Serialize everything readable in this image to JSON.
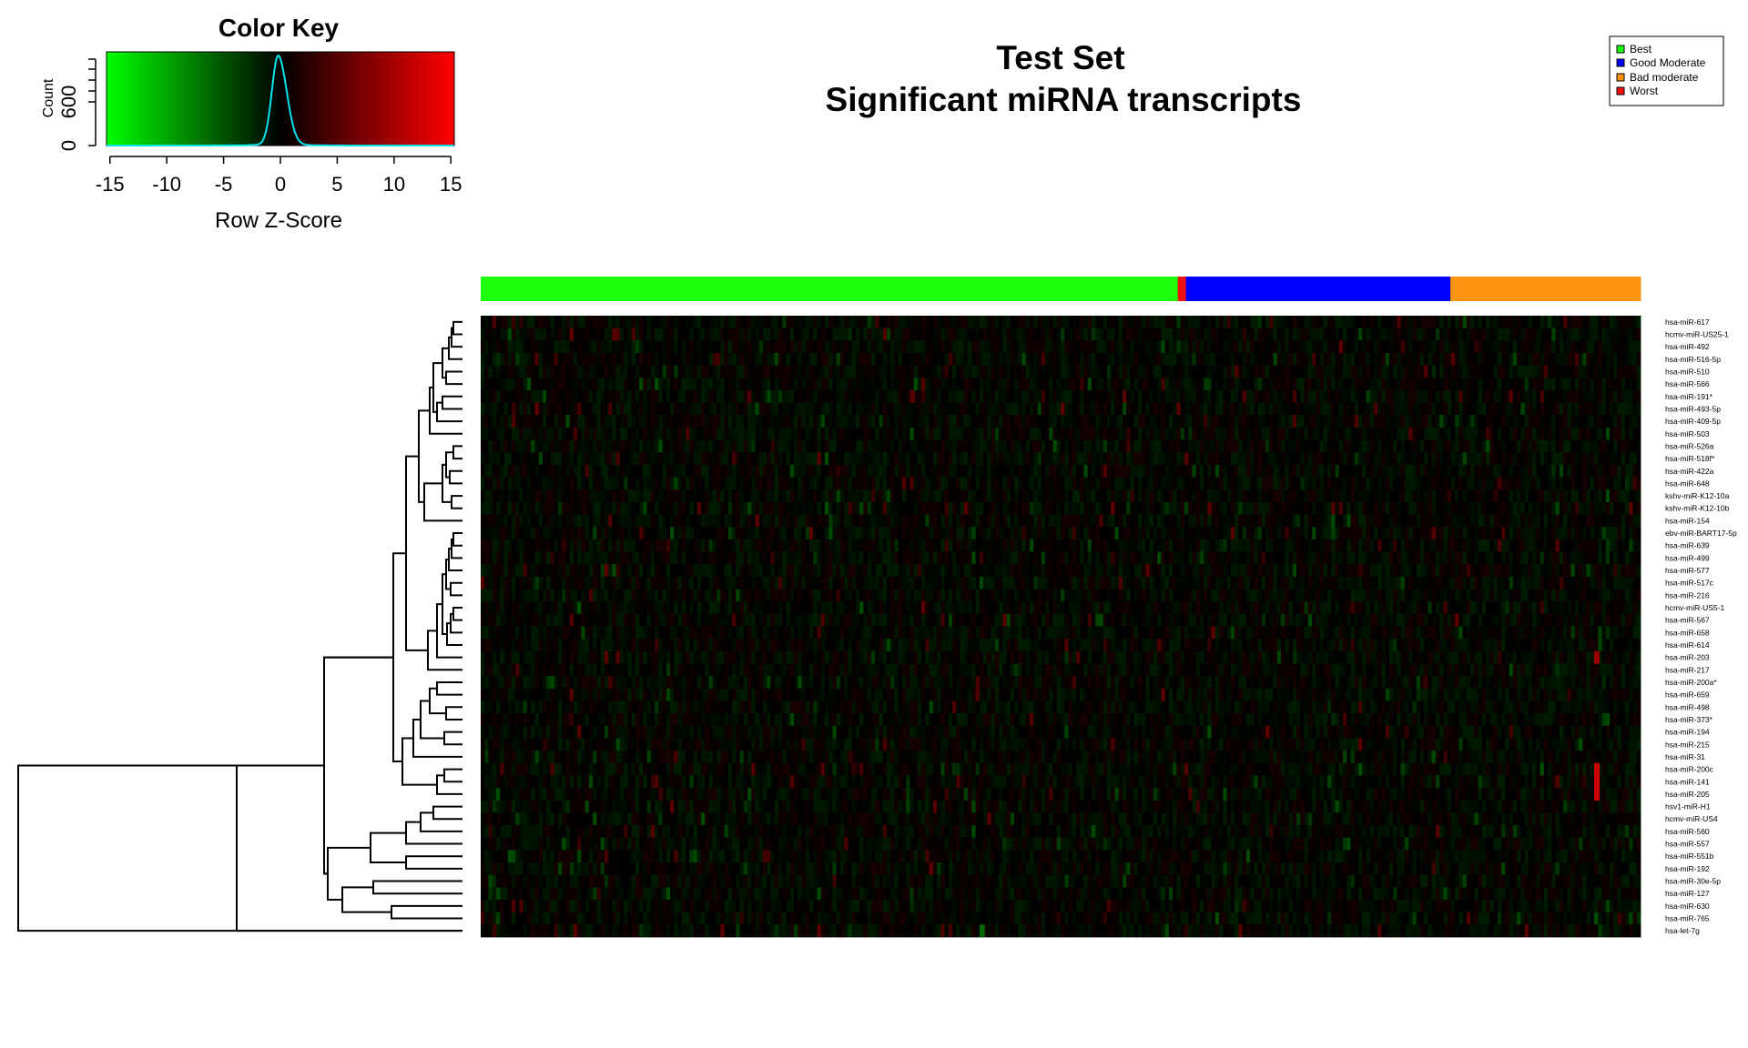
{
  "chart_data": {
    "type": "heatmap",
    "title": "Test Set",
    "subtitle": "Significant miRNA transcripts",
    "rows": [
      "hsa-miR-617",
      "hcmv-miR-US25-1",
      "hsa-miR-492",
      "hsa-miR-516-5p",
      "hsa-miR-510",
      "hsa-miR-566",
      "hsa-miR-191*",
      "hsa-miR-493-5p",
      "hsa-miR-409-5p",
      "hsa-miR-503",
      "hsa-miR-526a",
      "hsa-miR-518f*",
      "hsa-miR-422a",
      "hsa-miR-648",
      "kshv-miR-K12-10a",
      "kshv-miR-K12-10b",
      "hsa-miR-154",
      "ebv-miR-BART17-5p",
      "hsa-miR-639",
      "hsa-miR-499",
      "hsa-miR-577",
      "hsa-miR-517c",
      "hsa-miR-216",
      "hcmv-miR-US5-1",
      "hsa-miR-567",
      "hsa-miR-658",
      "hsa-miR-614",
      "hsa-miR-203",
      "hsa-miR-217",
      "hsa-miR-200a*",
      "hsa-miR-659",
      "hsa-miR-498",
      "hsa-miR-373*",
      "hsa-miR-194",
      "hsa-miR-215",
      "hsa-miR-31",
      "hsa-miR-200c",
      "hsa-miR-141",
      "hsa-miR-205",
      "hsv1-miR-H1",
      "hcmv-miR-US4",
      "hsa-miR-560",
      "hsa-miR-557",
      "hsa-miR-551b",
      "hsa-miR-192",
      "hsa-miR-30e-5p",
      "hsa-miR-127",
      "hsa-miR-630",
      "hsa-miR-765",
      "hsa-let-7g"
    ],
    "column_groups": [
      {
        "name": "Best",
        "color": "#1dff0a",
        "fraction": 0.601
      },
      {
        "name": "Worst",
        "color": "#ee1111",
        "fraction": 0.007
      },
      {
        "name": "Good Moderate",
        "color": "#0000ff",
        "fraction": 0.228
      },
      {
        "name": "Bad moderate",
        "color": "#ff9410",
        "fraction": 0.164
      }
    ],
    "highlights": [
      {
        "row": "hsa-miR-203",
        "column_fraction": 0.963,
        "z": 9
      },
      {
        "row": "hsa-miR-200c",
        "column_fraction": 0.963,
        "z": 12
      },
      {
        "row": "hsa-miR-141",
        "column_fraction": 0.963,
        "z": 12
      },
      {
        "row": "hsa-miR-205",
        "column_fraction": 0.963,
        "z": 12
      },
      {
        "row": "hsa-miR-191*",
        "column_fraction": 0.372,
        "z": 5
      },
      {
        "row": "hsa-let-7g",
        "column_fraction": 0.43,
        "z": -6
      }
    ],
    "legend": {
      "placement": "top-right",
      "entries": [
        {
          "label": "Best",
          "color": "#1dff0a"
        },
        {
          "label": "Good Moderate",
          "color": "#0000ff"
        },
        {
          "label": "Bad moderate",
          "color": "#ff9410"
        },
        {
          "label": "Worst",
          "color": "#ee1111"
        }
      ]
    },
    "color_key": {
      "title": "Color Key",
      "xlabel": "Row Z-Score",
      "ylabel": "Count",
      "xticks": [
        "-15",
        "-10",
        "-5",
        "0",
        "5",
        "10",
        "15"
      ],
      "yticks": [
        "0",
        "600"
      ],
      "xlim": [
        -15.3,
        15.3
      ],
      "ylim": [
        0,
        1150
      ],
      "colors": {
        "low": "#00ff00",
        "mid": "#000000",
        "high": "#ff0000",
        "density": "#00e5ee"
      },
      "density_peak": {
        "z": -0.2,
        "count": 1080
      }
    }
  }
}
